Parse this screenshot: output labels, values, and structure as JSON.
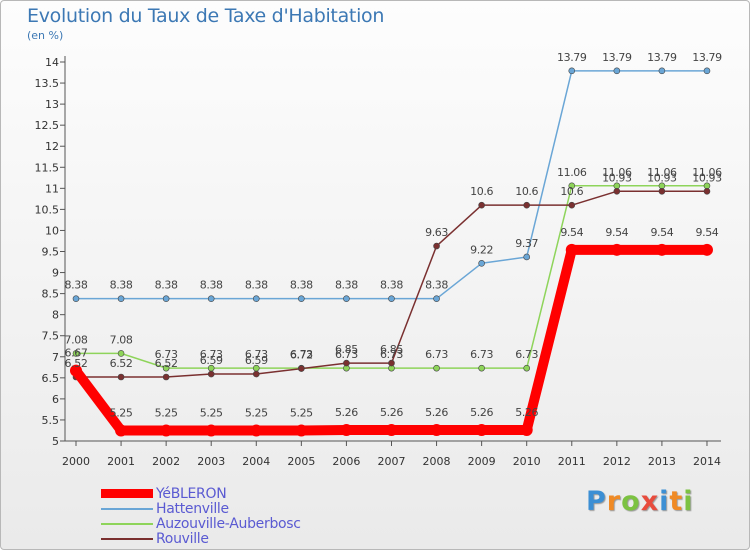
{
  "chart_data": {
    "type": "line",
    "title": "Evolution du Taux de Taxe d'Habitation",
    "unit_label": "(en %)",
    "x": [
      "2000",
      "2001",
      "2002",
      "2003",
      "2004",
      "2005",
      "2006",
      "2007",
      "2008",
      "2009",
      "2010",
      "2011",
      "2012",
      "2013",
      "2014"
    ],
    "yticks": [
      "5",
      "5.5",
      "6",
      "6.5",
      "7",
      "7.5",
      "8",
      "8.5",
      "9",
      "9.5",
      "10",
      "10.5",
      "11",
      "11.5",
      "12",
      "12.5",
      "13",
      "13.5",
      "14"
    ],
    "ylim": [
      5,
      14
    ],
    "grid": false,
    "legend_position": "bottom-left",
    "series": [
      {
        "name": "YéBLERON",
        "color": "#ff0000",
        "values": [
          6.67,
          5.25,
          5.25,
          5.25,
          5.25,
          5.25,
          5.26,
          5.26,
          5.26,
          5.26,
          5.26,
          9.54,
          9.54,
          9.54,
          9.54
        ],
        "labels": [
          "6.67",
          "5.25",
          "5.25",
          "5.25",
          "5.25",
          "5.25",
          "5.26",
          "5.26",
          "5.26",
          "5.26",
          "5.26",
          "9.54",
          "9.54",
          "9.54",
          "9.54"
        ]
      },
      {
        "name": "Hattenville",
        "color": "#6aa6d6",
        "values": [
          8.38,
          8.38,
          8.38,
          8.38,
          8.38,
          8.38,
          8.38,
          8.38,
          8.38,
          9.22,
          9.37,
          13.79,
          13.79,
          13.79,
          13.79
        ],
        "labels": [
          "8.38",
          "8.38",
          "8.38",
          "8.38",
          "8.38",
          "8.38",
          "8.38",
          "8.38",
          "8.38",
          "9.22",
          "9.37",
          "13.79",
          "13.79",
          "13.79",
          "13.79"
        ]
      },
      {
        "name": "Auzouville-Auberbosc",
        "color": "#8ed45a",
        "values": [
          7.08,
          7.08,
          6.73,
          6.73,
          6.73,
          6.73,
          6.73,
          6.73,
          6.73,
          6.73,
          6.73,
          11.06,
          11.06,
          11.06,
          11.06
        ],
        "labels": [
          "7.08",
          "7.08",
          "6.73",
          "6.73",
          "6.73",
          "6.73",
          "6.73",
          "6.73",
          "6.73",
          "6.73",
          "6.73",
          "11.06",
          "11.06",
          "11.06",
          "11.06"
        ]
      },
      {
        "name": "Rouville",
        "color": "#7a3030",
        "values": [
          6.52,
          6.52,
          6.52,
          6.59,
          6.59,
          6.72,
          6.85,
          6.85,
          9.63,
          10.6,
          10.6,
          10.6,
          10.93,
          10.93,
          10.93
        ],
        "labels": [
          "6.52",
          "6.52",
          "6.52",
          "6.59",
          "6.59",
          "6.72",
          "6.85",
          "6.85",
          "9.63",
          "10.6",
          "10.6",
          "10.6",
          "10.93",
          "10.93",
          "10.93"
        ]
      }
    ]
  },
  "logo": {
    "letters": [
      "P",
      "r",
      "o",
      "x",
      "i",
      "t",
      "i"
    ],
    "colors": [
      "#3c8fd4",
      "#f08a24",
      "#7cc242",
      "#e84c3d",
      "#3c8fd4",
      "#f08a24",
      "#7cc242"
    ]
  }
}
